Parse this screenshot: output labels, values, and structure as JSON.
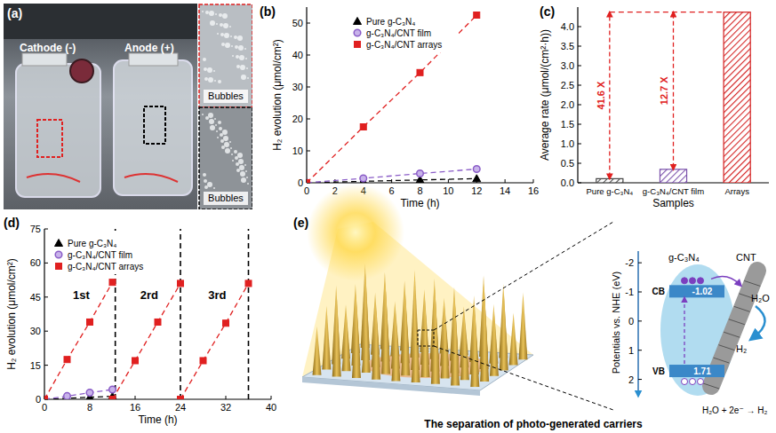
{
  "chart_data": [
    {
      "type": "line",
      "title": "(b)",
      "x_label": "Time (h)",
      "y_label": "H₂ evolution (μmol/cm²)",
      "xlim": [
        0,
        16
      ],
      "xticks": [
        0,
        2,
        4,
        6,
        8,
        10,
        12,
        14,
        16
      ],
      "ylim": [
        0,
        55
      ],
      "yticks": [
        0,
        10,
        20,
        30,
        40,
        50
      ],
      "legend": "top",
      "line_style": "dashed",
      "series": [
        {
          "name": "Pure g-C₃N₄",
          "color": "#000000",
          "marker": "triangle",
          "x": [
            0,
            4,
            8,
            12
          ],
          "values": [
            0,
            0.45,
            0.9,
            1.3
          ]
        },
        {
          "name": "g-C₃N₄/CNT film",
          "color": "#8a5cc7",
          "marker": "circle",
          "x": [
            0,
            4,
            8,
            12
          ],
          "values": [
            0,
            1.4,
            2.9,
            4.3
          ]
        },
        {
          "name": "g-C₃N₄/CNT arrays",
          "color": "#e02020",
          "marker": "square",
          "x": [
            0,
            4,
            8,
            12
          ],
          "values": [
            0,
            17.5,
            34.5,
            52.5
          ]
        }
      ]
    },
    {
      "type": "bar",
      "title": "(c)",
      "x_label": "Samples",
      "y_label": "Average rate (μmol/(cm²·h))",
      "categories": [
        "Pure g-C₃N₄",
        "g-C₃N₄/CNT film",
        "Arrays"
      ],
      "values": [
        0.105,
        0.345,
        4.37
      ],
      "colors": [
        "#444444",
        "#7b52ab",
        "#d42020"
      ],
      "ylim": [
        0,
        4.5
      ],
      "yticks": [
        {
          "value": 0,
          "label": "0.0"
        },
        {
          "value": 0.5,
          "label": "0.5"
        },
        {
          "value": 1,
          "label": "1.0"
        },
        {
          "value": 1.5,
          "label": "1.5"
        },
        {
          "value": 2,
          "label": "2.0"
        },
        {
          "value": 2.5,
          "label": "2.5"
        },
        {
          "value": 3,
          "label": "3.0"
        },
        {
          "value": 3.5,
          "label": "3.5"
        },
        {
          "value": 4,
          "label": "4.0"
        }
      ],
      "annotations": [
        "41.6 X",
        "12.7 X"
      ]
    },
    {
      "type": "line",
      "title": "(d)",
      "x_label": "Time (h)",
      "y_label": "H₂ evolution (μmol/cm²)",
      "xlim": [
        0,
        40
      ],
      "xticks": [
        0,
        8,
        16,
        24,
        32,
        40
      ],
      "ylim": [
        0,
        75
      ],
      "yticks": [
        0,
        15,
        30,
        45,
        60,
        75
      ],
      "legend": "upper left",
      "line_style": "dashed",
      "series": [
        {
          "name": "Pure g-C₃N₄",
          "color": "#000000",
          "marker": "triangle",
          "x": [
            0,
            4,
            8,
            12
          ],
          "values": [
            0,
            0.45,
            0.9,
            1.3
          ]
        },
        {
          "name": "g-C₃N₄/CNT film",
          "color": "#8a5cc7",
          "marker": "circle",
          "x": [
            0,
            4,
            8,
            12
          ],
          "values": [
            0,
            1.4,
            2.9,
            4.3
          ]
        },
        {
          "name": "g-C₃N₄/CNT arrays",
          "color": "#e02020",
          "marker": "square",
          "x": [
            0,
            4,
            8,
            12,
            12,
            12,
            16,
            20,
            24,
            24,
            24,
            28,
            32,
            36
          ],
          "values": [
            0,
            17.5,
            34,
            51.5,
            null,
            0,
            17,
            34,
            51,
            null,
            0,
            17,
            33.5,
            51
          ]
        }
      ],
      "cycle_ends": [
        12.5,
        24,
        36
      ],
      "annotations": [
        {
          "text": "1st",
          "x": 6.5,
          "y": 44
        },
        {
          "text": "2rd",
          "x": 18.5,
          "y": 44
        },
        {
          "text": "3rd",
          "x": 30.5,
          "y": 44
        }
      ]
    }
  ],
  "photo": {
    "title": "(a)",
    "labels": [
      "Cathode (-)",
      "Anode (+)"
    ],
    "insets": [
      "Bubbles",
      "Bubbles"
    ]
  },
  "diagram": {
    "title": "(e)",
    "caption": "The separation of photo-generated carriers",
    "axis_label": "Potentials vs. NHE (eV)",
    "range": [
      -2.4,
      2.5
    ],
    "ticks": [
      -2,
      -1,
      0,
      1,
      2
    ],
    "materials": [
      "g-C₃N₄",
      "CNT"
    ],
    "levels": [
      {
        "label": "CB",
        "value": -1.02
      },
      {
        "label": "VB",
        "value": 1.71
      }
    ],
    "species": [
      "H₂O",
      "H₂"
    ],
    "reaction": "H₂O + 2e⁻ → H₂"
  }
}
